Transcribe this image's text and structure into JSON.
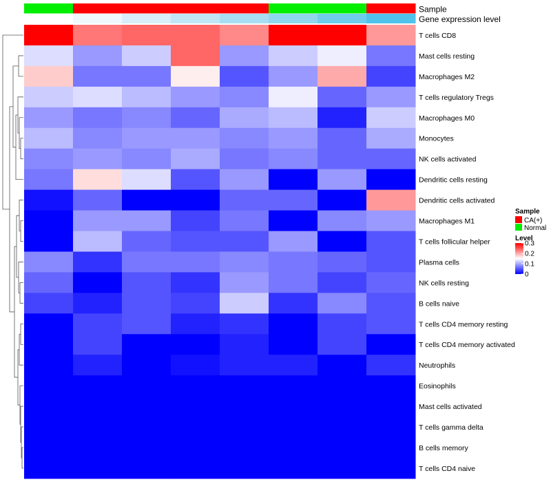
{
  "chart_data": {
    "type": "heatmap",
    "title": "",
    "annotation_tracks": [
      {
        "name": "Sample",
        "legend_title": "Sample",
        "colors": [
          "#00EE00",
          "#FF0000",
          "#FF0000",
          "#FF0000",
          "#FF0000",
          "#00EE00",
          "#00EE00",
          "#FF0000"
        ],
        "legend": [
          {
            "label": "CA(+)",
            "color": "#FF0000"
          },
          {
            "label": "Normal",
            "color": "#00EE00"
          }
        ]
      },
      {
        "name": "Gene expression level",
        "colors": [
          "#FFFFFF",
          "#F0F8FC",
          "#D8EEF8",
          "#C0E6F5",
          "#A8DEF2",
          "#90D6EF",
          "#70CCEC",
          "#4FC3EA"
        ]
      }
    ],
    "row_labels": [
      "T cells CD8",
      "Mast cells resting",
      "Macrophages M2",
      "T cells regulatory  Tregs",
      "Macrophages M0",
      "Monocytes",
      "NK cells activated",
      "Dendritic cells resting",
      "Dendritic cells activated",
      "Macrophages M1",
      "T cells follicular helper",
      "Plasma cells",
      "NK cells resting",
      "B cells naive",
      "T cells CD4 memory resting",
      "T cells CD4 memory activated",
      "Neutrophils",
      "Eosinophils",
      "Mast cells activated",
      "T cells gamma delta",
      "B cells memory",
      "T cells CD4 naive"
    ],
    "values": [
      [
        0.3,
        0.23,
        0.24,
        0.24,
        0.22,
        0.3,
        0.3,
        0.21
      ],
      [
        0.13,
        0.09,
        0.12,
        0.24,
        0.09,
        0.12,
        0.14,
        0.07
      ],
      [
        0.18,
        0.07,
        0.07,
        0.16,
        0.05,
        0.09,
        0.2,
        0.04
      ],
      [
        0.12,
        0.13,
        0.11,
        0.09,
        0.08,
        0.14,
        0.06,
        0.09
      ],
      [
        0.09,
        0.07,
        0.08,
        0.06,
        0.1,
        0.11,
        0.02,
        0.12
      ],
      [
        0.11,
        0.08,
        0.09,
        0.09,
        0.08,
        0.09,
        0.06,
        0.1
      ],
      [
        0.08,
        0.09,
        0.08,
        0.1,
        0.07,
        0.08,
        0.06,
        0.06
      ],
      [
        0.07,
        0.17,
        0.13,
        0.05,
        0.09,
        0.0,
        0.09,
        0.0
      ],
      [
        0.01,
        0.06,
        0.0,
        0.0,
        0.06,
        0.06,
        0.0,
        0.21
      ],
      [
        0.0,
        0.09,
        0.09,
        0.04,
        0.07,
        0.0,
        0.08,
        0.09
      ],
      [
        0.0,
        0.11,
        0.06,
        0.05,
        0.05,
        0.09,
        0.0,
        0.05
      ],
      [
        0.08,
        0.03,
        0.07,
        0.07,
        0.08,
        0.07,
        0.06,
        0.05
      ],
      [
        0.06,
        0.0,
        0.05,
        0.03,
        0.09,
        0.07,
        0.04,
        0.06
      ],
      [
        0.04,
        0.02,
        0.05,
        0.04,
        0.12,
        0.03,
        0.08,
        0.05
      ],
      [
        0.0,
        0.04,
        0.05,
        0.02,
        0.03,
        0.0,
        0.04,
        0.05
      ],
      [
        0.0,
        0.04,
        0.0,
        0.0,
        0.02,
        0.0,
        0.04,
        0.0
      ],
      [
        0.0,
        0.02,
        0.0,
        0.01,
        0.02,
        0.02,
        0.0,
        0.03
      ],
      [
        0.0,
        0.0,
        0.0,
        0.0,
        0.0,
        0.0,
        0.0,
        0.0
      ],
      [
        0.0,
        0.0,
        0.0,
        0.0,
        0.0,
        0.0,
        0.0,
        0.0
      ],
      [
        0.0,
        0.0,
        0.0,
        0.0,
        0.0,
        0.0,
        0.0,
        0.0
      ],
      [
        0.0,
        0.0,
        0.0,
        0.0,
        0.0,
        0.0,
        0.0,
        0.0
      ],
      [
        0.0,
        0.0,
        0.0,
        0.0,
        0.0,
        0.0,
        0.0,
        0.0
      ]
    ],
    "color_scale": {
      "legend_title": "Level",
      "min": 0,
      "max": 0.3,
      "stops": [
        {
          "value": 0,
          "color": "#0000FF"
        },
        {
          "value": 0.15,
          "color": "#FFFFFF"
        },
        {
          "value": 0.3,
          "color": "#FF0000"
        }
      ],
      "ticks": [
        "0",
        "0.1",
        "0.2",
        "0.3"
      ]
    },
    "row_dendrogram": true,
    "legend_position": "right"
  }
}
